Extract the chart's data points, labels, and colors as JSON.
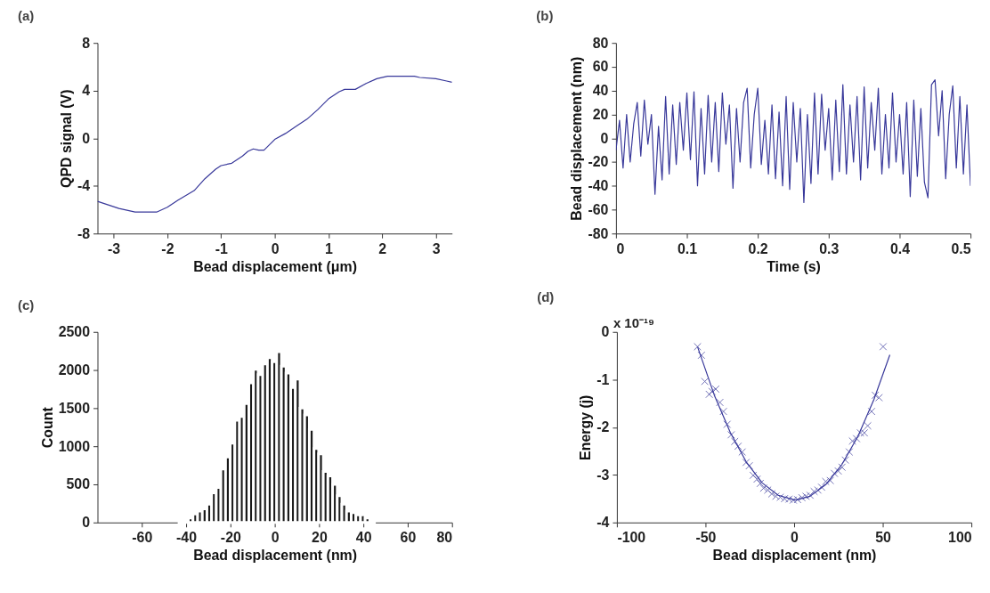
{
  "chart_data": [
    {
      "type": "line",
      "title": "(a)",
      "xlabel": "Bead displacement (μm)",
      "ylabel": "QPD signal (V)",
      "xlim": [
        -3.3,
        3.3
      ],
      "xticks": [
        -3,
        -2,
        -1,
        0,
        1,
        2,
        3
      ],
      "ylim": [
        -8,
        8
      ],
      "yticks": [
        -8,
        -4,
        0,
        4,
        8
      ],
      "x": [
        -3.3,
        -3.1,
        -2.9,
        -2.6,
        -2.2,
        -2.0,
        -1.8,
        -1.5,
        -1.3,
        -1.1,
        -1.0,
        -0.8,
        -0.6,
        -0.5,
        -0.4,
        -0.3,
        -0.2,
        0,
        0.2,
        0.4,
        0.6,
        0.8,
        1.0,
        1.2,
        1.3,
        1.5,
        1.7,
        1.9,
        2.1,
        2.6,
        2.7,
        3.0,
        3.2,
        3.3
      ],
      "series": [
        {
          "color": "#38389a",
          "values": [
            -5.3,
            -5.6,
            -5.9,
            -6.2,
            -6.2,
            -5.8,
            -5.2,
            -4.4,
            -3.4,
            -2.6,
            -2.3,
            -2.1,
            -1.5,
            -1.1,
            -0.9,
            -1.0,
            -1.0,
            -0.1,
            0.4,
            1.0,
            1.6,
            2.4,
            3.3,
            3.9,
            4.1,
            4.1,
            4.6,
            5.0,
            5.2,
            5.2,
            5.1,
            5.0,
            4.8,
            4.7
          ]
        }
      ]
    },
    {
      "type": "line",
      "title": "(b)",
      "xlabel": "Time (s)",
      "ylabel": "Bead displacement (nm)",
      "xlim": [
        0,
        0.5
      ],
      "xticks": [
        0,
        0.1,
        0.2,
        0.3,
        0.4,
        0.5
      ],
      "ylim": [
        -80,
        80
      ],
      "yticks": [
        -80,
        -60,
        -40,
        -20,
        0,
        20,
        40,
        60,
        80
      ],
      "x": [
        0,
        0.005,
        0.01,
        0.015,
        0.02,
        0.025,
        0.03,
        0.035,
        0.04,
        0.045,
        0.05,
        0.055,
        0.06,
        0.065,
        0.07,
        0.075,
        0.08,
        0.085,
        0.09,
        0.095,
        0.1,
        0.105,
        0.11,
        0.115,
        0.12,
        0.125,
        0.13,
        0.135,
        0.14,
        0.145,
        0.15,
        0.155,
        0.16,
        0.165,
        0.17,
        0.175,
        0.18,
        0.185,
        0.19,
        0.195,
        0.2,
        0.205,
        0.21,
        0.215,
        0.22,
        0.225,
        0.23,
        0.235,
        0.24,
        0.245,
        0.25,
        0.255,
        0.26,
        0.265,
        0.27,
        0.275,
        0.28,
        0.285,
        0.29,
        0.295,
        0.3,
        0.305,
        0.31,
        0.315,
        0.32,
        0.325,
        0.33,
        0.335,
        0.34,
        0.345,
        0.35,
        0.355,
        0.36,
        0.365,
        0.37,
        0.375,
        0.38,
        0.385,
        0.39,
        0.395,
        0.4,
        0.405,
        0.41,
        0.415,
        0.42,
        0.425,
        0.43,
        0.435,
        0.44,
        0.445,
        0.45,
        0.455,
        0.46,
        0.465,
        0.47,
        0.475,
        0.48,
        0.485,
        0.49,
        0.495,
        0.5
      ],
      "series": [
        {
          "color": "#38389a",
          "values": [
            -10,
            15,
            -25,
            20,
            -20,
            12,
            30,
            -15,
            32,
            -5,
            20,
            -47,
            10,
            -35,
            35,
            -30,
            28,
            -22,
            30,
            -10,
            38,
            -18,
            39,
            -40,
            25,
            -30,
            36,
            -20,
            30,
            -28,
            38,
            -5,
            28,
            -42,
            25,
            -20,
            30,
            42,
            -25,
            20,
            42,
            -22,
            15,
            -30,
            28,
            -34,
            22,
            -40,
            35,
            -43,
            30,
            -20,
            25,
            -54,
            20,
            -38,
            38,
            -30,
            37,
            -10,
            25,
            -35,
            32,
            -28,
            45,
            -30,
            28,
            -20,
            35,
            -35,
            43,
            -25,
            30,
            -10,
            42,
            -30,
            20,
            -25,
            38,
            -20,
            20,
            -30,
            30,
            -49,
            32,
            -32,
            25,
            -37,
            -50,
            45,
            49,
            2,
            40,
            -34,
            20,
            44,
            -25,
            35,
            -30,
            28,
            -40
          ]
        }
      ]
    },
    {
      "type": "histogram",
      "xlabel": "Bead displacement (nm)",
      "ylabel": "Count",
      "title": "(c)",
      "xlim": [
        -80,
        80
      ],
      "xticks": [
        -60,
        -40,
        -20,
        0,
        20,
        40,
        60,
        80
      ],
      "ylim": [
        0,
        2500
      ],
      "yticks": [
        0,
        500,
        1000,
        1500,
        2000,
        2500
      ],
      "color": "#1a1a1a",
      "bins": [
        -43.2,
        -41.1,
        -39,
        -36.9,
        -34.8,
        -32.7,
        -30.6,
        -28.5,
        -26.4,
        -24.3,
        -22.2,
        -20.1,
        -18,
        -15.9,
        -13.8,
        -11.7,
        -9.6,
        -7.5,
        -5.4,
        -3.3,
        -1.2,
        0.9,
        3,
        5.1,
        7.2,
        9.3,
        11.4,
        13.5,
        15.6,
        17.7,
        19.8,
        21.9,
        24,
        26.1,
        28.2,
        30.3,
        32.4,
        34.5,
        36.6,
        38.7,
        40.8,
        42.9,
        45
      ],
      "values": [
        10,
        20,
        60,
        110,
        150,
        180,
        240,
        390,
        460,
        700,
        860,
        1040,
        1340,
        1390,
        1560,
        1830,
        2010,
        1940,
        2080,
        2160,
        2110,
        2240,
        2050,
        1960,
        1770,
        1880,
        1500,
        1410,
        1220,
        970,
        900,
        670,
        610,
        500,
        350,
        240,
        150,
        130,
        100,
        100,
        60,
        20
      ]
    },
    {
      "type": "scatter",
      "title": "(d)",
      "xlabel": "Bead displacement (nm)",
      "ylabel": "Energy (j)",
      "annotations": [
        "x 10⁻¹⁹"
      ],
      "xlim": [
        -100,
        100
      ],
      "xticks": [
        -100,
        -50,
        0,
        50,
        100
      ],
      "ylim": [
        -4,
        0
      ],
      "yticks": [
        -4,
        -3,
        -2,
        -1,
        0
      ],
      "series": [
        {
          "type": "scatter",
          "marker": "cross",
          "color": "#38389a",
          "x": [
            -54.5,
            -52.3,
            -50.4,
            -47.9,
            -46.3,
            -44.2,
            -41.9,
            -39.9,
            -37.8,
            -35.5,
            -33.5,
            -31.6,
            -29.3,
            -27.1,
            -25.3,
            -23.1,
            -20.9,
            -19.1,
            -17.2,
            -14.9,
            -12.6,
            -10.3,
            -7.8,
            -5.4,
            -2.9,
            -0.5,
            2.0,
            4.4,
            6.7,
            9.0,
            11.3,
            13.4,
            15.5,
            17.8,
            20.4,
            22.7,
            24.9,
            27.0,
            28.9,
            31.1,
            32.9,
            35.2,
            37.4,
            39.6,
            41.5,
            43.7,
            45.8,
            47.9,
            50.2
          ],
          "values": [
            -0.31,
            -0.49,
            -1.04,
            -1.31,
            -1.25,
            -1.2,
            -1.48,
            -1.67,
            -1.94,
            -2.16,
            -2.3,
            -2.4,
            -2.52,
            -2.74,
            -2.81,
            -3.01,
            -3.09,
            -3.18,
            -3.28,
            -3.32,
            -3.4,
            -3.45,
            -3.47,
            -3.5,
            -3.51,
            -3.53,
            -3.52,
            -3.48,
            -3.45,
            -3.43,
            -3.35,
            -3.32,
            -3.26,
            -3.14,
            -3.12,
            -2.97,
            -2.92,
            -2.84,
            -2.69,
            -2.52,
            -2.29,
            -2.24,
            -2.12,
            -2.12,
            -1.97,
            -1.67,
            -1.33,
            -1.38,
            -0.31
          ]
        },
        {
          "type": "line",
          "color": "#38389a",
          "x": [
            -54.5,
            -45,
            -36,
            -27,
            -18,
            -9,
            0.5,
            9,
            18,
            27,
            36,
            45,
            54
          ],
          "values": [
            -0.31,
            -1.33,
            -2.11,
            -2.73,
            -3.17,
            -3.43,
            -3.53,
            -3.45,
            -3.2,
            -2.78,
            -2.19,
            -1.42,
            -0.48
          ]
        }
      ]
    }
  ]
}
